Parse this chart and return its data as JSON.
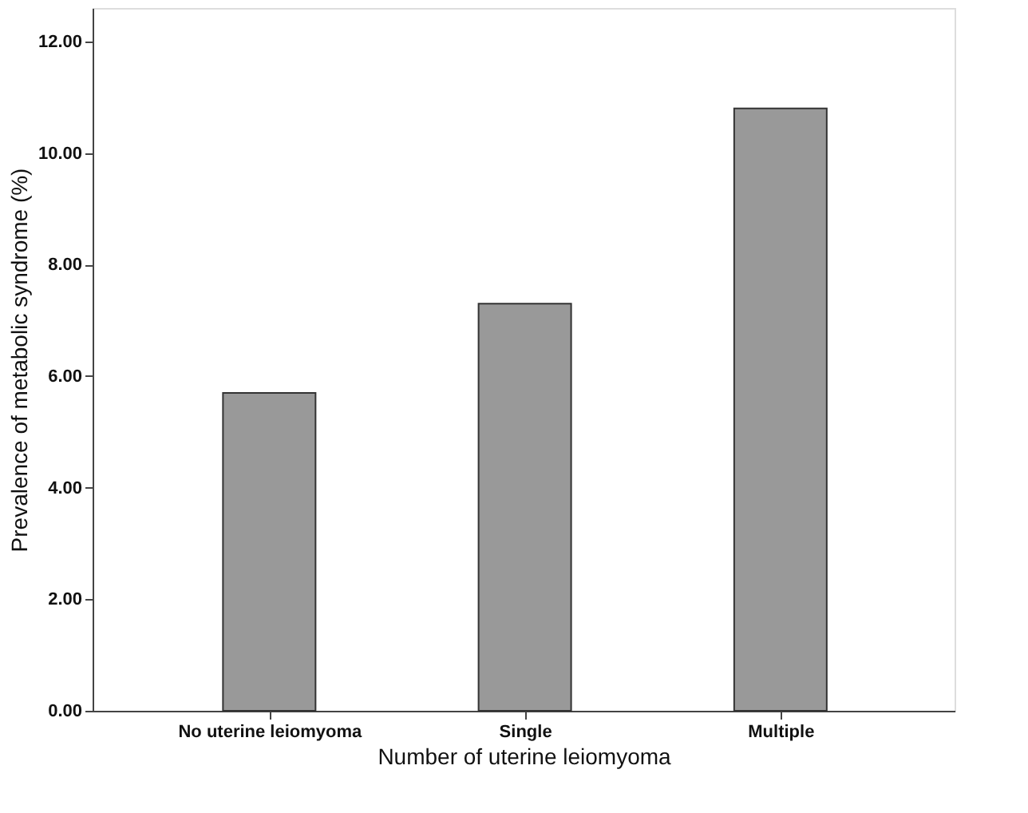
{
  "chart_data": {
    "type": "bar",
    "xlabel": "Number of uterine leiomyoma",
    "ylabel": "Prevalence of metabolic syndrome (%)",
    "categories": [
      "No uterine leiomyoma",
      "Single",
      "Multiple"
    ],
    "values": [
      5.7,
      7.3,
      10.8
    ],
    "color": "#999999",
    "ylim": [
      0,
      12.6
    ],
    "yticks": [
      {
        "value": 0,
        "label": "0.00"
      },
      {
        "value": 2,
        "label": "2.00"
      },
      {
        "value": 4,
        "label": "4.00"
      },
      {
        "value": 6,
        "label": "6.00"
      },
      {
        "value": 8,
        "label": "8.00"
      },
      {
        "value": 10,
        "label": "10.00"
      },
      {
        "value": 12,
        "label": "12.00"
      }
    ],
    "grid": false
  }
}
